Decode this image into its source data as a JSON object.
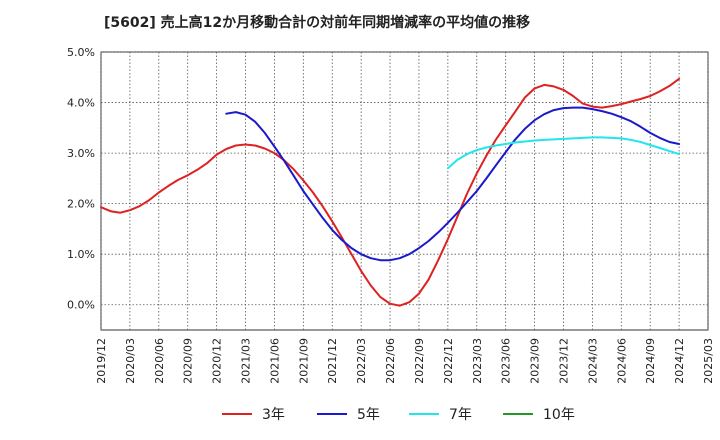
{
  "chart_data": {
    "type": "line",
    "title": "[5602]  売上高12か月移動合計の対前年同期増減率の平均値の推移",
    "xlabel": "",
    "ylabel": "",
    "x_ticks": [
      "2019/12",
      "2020/03",
      "2020/06",
      "2020/09",
      "2020/12",
      "2021/03",
      "2021/06",
      "2021/09",
      "2021/12",
      "2022/03",
      "2022/06",
      "2022/09",
      "2022/12",
      "2023/03",
      "2023/06",
      "2023/09",
      "2023/12",
      "2024/03",
      "2024/06",
      "2024/09",
      "2024/12",
      "2025/03"
    ],
    "y_ticks": [
      "5.0%",
      "4.0%",
      "3.0%",
      "2.0%",
      "1.0%",
      "0.0%"
    ],
    "y_tick_values": [
      5.0,
      4.0,
      3.0,
      2.0,
      1.0,
      0.0
    ],
    "ylim": [
      -0.5,
      5.0
    ],
    "grid": true,
    "legend_position": "bottom",
    "series": [
      {
        "name": "3年",
        "color": "#dd2222",
        "x": [
          "2019/12",
          "2020/01",
          "2020/02",
          "2020/03",
          "2020/04",
          "2020/05",
          "2020/06",
          "2020/07",
          "2020/08",
          "2020/09",
          "2020/10",
          "2020/11",
          "2020/12",
          "2021/01",
          "2021/02",
          "2021/03",
          "2021/04",
          "2021/05",
          "2021/06",
          "2021/07",
          "2021/08",
          "2021/09",
          "2021/10",
          "2021/11",
          "2021/12",
          "2022/01",
          "2022/02",
          "2022/03",
          "2022/04",
          "2022/05",
          "2022/06",
          "2022/07",
          "2022/08",
          "2022/09",
          "2022/10",
          "2022/11",
          "2022/12",
          "2023/01",
          "2023/02",
          "2023/03",
          "2023/04",
          "2023/05",
          "2023/06",
          "2023/07",
          "2023/08",
          "2023/09",
          "2023/10",
          "2023/11",
          "2023/12",
          "2024/01",
          "2024/02",
          "2024/03",
          "2024/04",
          "2024/05",
          "2024/06",
          "2024/07",
          "2024/08",
          "2024/09",
          "2024/10",
          "2024/11",
          "2024/12"
        ],
        "values": [
          1.93,
          1.85,
          1.82,
          1.87,
          1.95,
          2.07,
          2.22,
          2.35,
          2.47,
          2.56,
          2.67,
          2.8,
          2.97,
          3.08,
          3.15,
          3.17,
          3.15,
          3.09,
          3.0,
          2.86,
          2.68,
          2.46,
          2.22,
          1.95,
          1.65,
          1.33,
          1.0,
          0.67,
          0.38,
          0.15,
          0.02,
          -0.02,
          0.05,
          0.22,
          0.5,
          0.88,
          1.3,
          1.75,
          2.2,
          2.6,
          2.95,
          3.27,
          3.55,
          3.82,
          4.1,
          4.28,
          4.35,
          4.32,
          4.25,
          4.13,
          3.98,
          3.92,
          3.9,
          3.93,
          3.97,
          4.02,
          4.07,
          4.13,
          4.22,
          4.33,
          4.47
        ]
      },
      {
        "name": "5年",
        "color": "#1a1acc",
        "x": [
          "2021/01",
          "2021/02",
          "2021/03",
          "2021/04",
          "2021/05",
          "2021/06",
          "2021/07",
          "2021/08",
          "2021/09",
          "2021/10",
          "2021/11",
          "2021/12",
          "2022/01",
          "2022/02",
          "2022/03",
          "2022/04",
          "2022/05",
          "2022/06",
          "2022/07",
          "2022/08",
          "2022/09",
          "2022/10",
          "2022/11",
          "2022/12",
          "2023/01",
          "2023/02",
          "2023/03",
          "2023/04",
          "2023/05",
          "2023/06",
          "2023/07",
          "2023/08",
          "2023/09",
          "2023/10",
          "2023/11",
          "2023/12",
          "2024/01",
          "2024/02",
          "2024/03",
          "2024/04",
          "2024/05",
          "2024/06",
          "2024/07",
          "2024/08",
          "2024/09",
          "2024/10",
          "2024/11",
          "2024/12"
        ],
        "values": [
          3.78,
          3.81,
          3.76,
          3.62,
          3.4,
          3.13,
          2.85,
          2.55,
          2.25,
          1.98,
          1.72,
          1.48,
          1.28,
          1.12,
          1.0,
          0.92,
          0.88,
          0.88,
          0.92,
          1.0,
          1.12,
          1.26,
          1.43,
          1.62,
          1.82,
          2.03,
          2.25,
          2.5,
          2.76,
          3.02,
          3.27,
          3.48,
          3.65,
          3.77,
          3.85,
          3.89,
          3.9,
          3.9,
          3.87,
          3.83,
          3.78,
          3.71,
          3.63,
          3.52,
          3.4,
          3.3,
          3.22,
          3.18
        ]
      },
      {
        "name": "7年",
        "color": "#22e5ee",
        "x": [
          "2022/12",
          "2023/01",
          "2023/02",
          "2023/03",
          "2023/04",
          "2023/05",
          "2023/06",
          "2023/07",
          "2023/08",
          "2023/09",
          "2023/10",
          "2023/11",
          "2023/12",
          "2024/01",
          "2024/02",
          "2024/03",
          "2024/04",
          "2024/05",
          "2024/06",
          "2024/07",
          "2024/08",
          "2024/09",
          "2024/10",
          "2024/11",
          "2024/12"
        ],
        "values": [
          2.7,
          2.87,
          2.98,
          3.06,
          3.11,
          3.15,
          3.18,
          3.21,
          3.23,
          3.25,
          3.26,
          3.27,
          3.28,
          3.29,
          3.3,
          3.31,
          3.31,
          3.3,
          3.29,
          3.26,
          3.22,
          3.16,
          3.1,
          3.04,
          2.98
        ]
      },
      {
        "name": "10年",
        "color": "#229922",
        "x": [],
        "values": []
      }
    ]
  }
}
